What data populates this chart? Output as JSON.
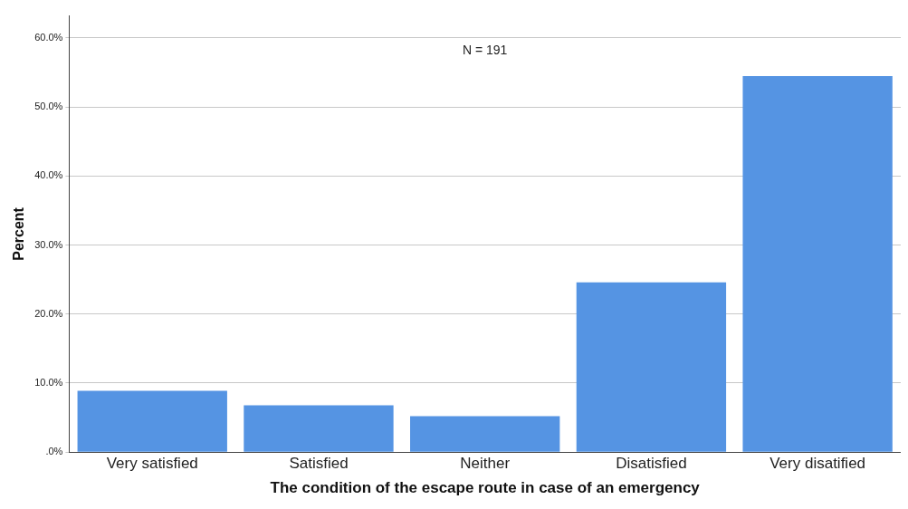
{
  "chart_data": {
    "type": "bar",
    "xlabel": "The condition of the escape route in case of an emergency",
    "ylabel": "Percent",
    "categories": [
      "Very satisfied",
      "Satisfied",
      "Neither",
      "Disatisfied",
      "Very disatified"
    ],
    "values": [
      8.9,
      6.8,
      5.2,
      24.6,
      54.5
    ],
    "color": "#5594e3",
    "ylim": [
      0,
      63.2
    ],
    "yticks": [
      {
        "value": 0,
        "label": ".0%"
      },
      {
        "value": 10,
        "label": "10.0%"
      },
      {
        "value": 20,
        "label": "20.0%"
      },
      {
        "value": 30,
        "label": "30.0%"
      },
      {
        "value": 40,
        "label": "40.0%"
      },
      {
        "value": 50,
        "label": "50.0%"
      },
      {
        "value": 60,
        "label": "60.0%"
      }
    ],
    "grid": "y",
    "legend": false,
    "annotations": [
      "N = 191"
    ]
  }
}
